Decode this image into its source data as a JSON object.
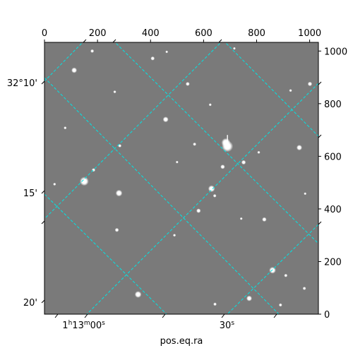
{
  "chart_data": {
    "type": "image",
    "title": "",
    "xlabel": "pos.eq.ra",
    "ylabel": "",
    "pixel_axes": {
      "x_range": [
        0,
        1033
      ],
      "y_range": [
        0,
        1033
      ],
      "x_ticks": [
        "0",
        "200",
        "400",
        "600",
        "800",
        "1000"
      ],
      "x_tick_values": [
        0,
        200,
        400,
        600,
        800,
        1000
      ],
      "y_ticks": [
        "0",
        "200",
        "400",
        "600",
        "800",
        "1000"
      ],
      "y_tick_values": [
        0,
        200,
        400,
        600,
        800,
        1000
      ]
    },
    "world_axes": {
      "ra_labels": [
        {
          "base": "1",
          "h": "h",
          "mid": "13",
          "m": "m",
          "tail": "00",
          "s": "s",
          "pixel": 148
        },
        {
          "base": "30",
          "h": "",
          "mid": "",
          "m": "",
          "tail": "",
          "s": "s",
          "pixel": 688
        }
      ],
      "dec_labels": [
        {
          "text": "32°10'",
          "pixel": 880
        },
        {
          "text": "15'",
          "pixel": 462
        },
        {
          "text": "20'",
          "pixel": 46
        }
      ]
    },
    "grid": true,
    "grid_color": "#00e5e5",
    "image_background": "#7a7a7a",
    "stars": [
      {
        "x": 684,
        "y": 652,
        "r": 4.0
      },
      {
        "x": 690,
        "y": 638,
        "r": 5.0
      },
      {
        "x": 150,
        "y": 505,
        "r": 4.0
      },
      {
        "x": 281,
        "y": 460,
        "r": 3.0
      },
      {
        "x": 630,
        "y": 477,
        "r": 3.0
      },
      {
        "x": 457,
        "y": 740,
        "r": 2.5
      },
      {
        "x": 961,
        "y": 633,
        "r": 2.5
      },
      {
        "x": 1001,
        "y": 875,
        "r": 2.0
      },
      {
        "x": 860,
        "y": 167,
        "r": 3.0
      },
      {
        "x": 353,
        "y": 75,
        "r": 3.0
      },
      {
        "x": 772,
        "y": 60,
        "r": 2.5
      },
      {
        "x": 672,
        "y": 560,
        "r": 2.0
      },
      {
        "x": 751,
        "y": 577,
        "r": 2.0
      },
      {
        "x": 581,
        "y": 393,
        "r": 2.0
      },
      {
        "x": 829,
        "y": 360,
        "r": 2.0
      },
      {
        "x": 273,
        "y": 320,
        "r": 1.8
      },
      {
        "x": 642,
        "y": 450,
        "r": 1.5
      },
      {
        "x": 540,
        "y": 875,
        "r": 1.8
      },
      {
        "x": 408,
        "y": 972,
        "r": 1.8
      },
      {
        "x": 180,
        "y": 1000,
        "r": 1.6
      },
      {
        "x": 185,
        "y": 548,
        "r": 1.6
      },
      {
        "x": 284,
        "y": 640,
        "r": 1.5
      },
      {
        "x": 112,
        "y": 927,
        "r": 2.5
      },
      {
        "x": 910,
        "y": 147,
        "r": 1.5
      },
      {
        "x": 890,
        "y": 35,
        "r": 1.5
      },
      {
        "x": 643,
        "y": 38,
        "r": 1.5
      },
      {
        "x": 566,
        "y": 646,
        "r": 1.5
      },
      {
        "x": 490,
        "y": 300,
        "r": 1.3
      },
      {
        "x": 808,
        "y": 615,
        "r": 1.3
      },
      {
        "x": 78,
        "y": 708,
        "r": 1.3
      },
      {
        "x": 265,
        "y": 845,
        "r": 1.3
      },
      {
        "x": 625,
        "y": 796,
        "r": 1.3
      },
      {
        "x": 928,
        "y": 850,
        "r": 1.3
      },
      {
        "x": 38,
        "y": 494,
        "r": 1.3
      },
      {
        "x": 461,
        "y": 997,
        "r": 1.2
      },
      {
        "x": 742,
        "y": 363,
        "r": 1.2
      },
      {
        "x": 983,
        "y": 458,
        "r": 1.2
      },
      {
        "x": 500,
        "y": 578,
        "r": 1.2
      },
      {
        "x": 716,
        "y": 1010,
        "r": 1.2
      },
      {
        "x": 980,
        "y": 98,
        "r": 1.5
      }
    ]
  }
}
